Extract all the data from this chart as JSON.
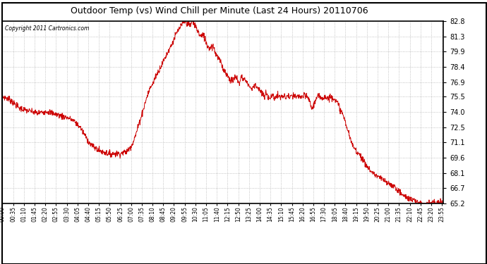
{
  "title": "Outdoor Temp (vs) Wind Chill per Minute (Last 24 Hours) 20110706",
  "copyright": "Copyright 2011 Cartronics.com",
  "background_color": "#ffffff",
  "plot_bg_color": "#ffffff",
  "line_color": "#cc0000",
  "grid_color": "#aaaaaa",
  "ylim": [
    65.2,
    82.8
  ],
  "yticks": [
    82.8,
    81.3,
    79.9,
    78.4,
    76.9,
    75.5,
    74.0,
    72.5,
    71.1,
    69.6,
    68.1,
    66.7,
    65.2
  ],
  "xtick_labels": [
    "00:00",
    "00:35",
    "01:10",
    "01:45",
    "02:20",
    "02:55",
    "03:30",
    "04:05",
    "04:40",
    "05:15",
    "05:50",
    "06:25",
    "07:00",
    "07:35",
    "08:10",
    "08:45",
    "09:20",
    "09:55",
    "10:30",
    "11:05",
    "11:40",
    "12:15",
    "12:50",
    "13:25",
    "14:00",
    "14:35",
    "15:10",
    "15:45",
    "16:20",
    "16:55",
    "17:30",
    "18:05",
    "18:40",
    "19:15",
    "19:50",
    "20:25",
    "21:00",
    "21:35",
    "22:10",
    "22:45",
    "23:20",
    "23:55"
  ],
  "control_points": [
    [
      0,
      75.5
    ],
    [
      10,
      75.4
    ],
    [
      20,
      75.3
    ],
    [
      30,
      75.1
    ],
    [
      40,
      74.8
    ],
    [
      55,
      74.4
    ],
    [
      65,
      74.3
    ],
    [
      75,
      74.2
    ],
    [
      90,
      74.1
    ],
    [
      105,
      74.0
    ],
    [
      115,
      73.9
    ],
    [
      130,
      74.0
    ],
    [
      145,
      74.1
    ],
    [
      155,
      74.0
    ],
    [
      165,
      73.9
    ],
    [
      175,
      73.8
    ],
    [
      185,
      73.7
    ],
    [
      195,
      73.6
    ],
    [
      210,
      73.5
    ],
    [
      225,
      73.3
    ],
    [
      240,
      73.0
    ],
    [
      255,
      72.5
    ],
    [
      265,
      72.0
    ],
    [
      275,
      71.5
    ],
    [
      285,
      71.0
    ],
    [
      295,
      70.7
    ],
    [
      305,
      70.5
    ],
    [
      315,
      70.3
    ],
    [
      325,
      70.2
    ],
    [
      335,
      70.1
    ],
    [
      345,
      70.0
    ],
    [
      360,
      70.0
    ],
    [
      375,
      70.0
    ],
    [
      385,
      70.0
    ],
    [
      395,
      70.1
    ],
    [
      405,
      70.2
    ],
    [
      415,
      70.5
    ],
    [
      425,
      71.0
    ],
    [
      435,
      71.8
    ],
    [
      445,
      72.8
    ],
    [
      455,
      73.8
    ],
    [
      465,
      74.8
    ],
    [
      475,
      75.8
    ],
    [
      485,
      76.5
    ],
    [
      492,
      76.8
    ],
    [
      500,
      77.5
    ],
    [
      510,
      78.0
    ],
    [
      520,
      78.6
    ],
    [
      530,
      79.2
    ],
    [
      540,
      79.8
    ],
    [
      550,
      80.4
    ],
    [
      558,
      80.9
    ],
    [
      565,
      81.4
    ],
    [
      572,
      81.8
    ],
    [
      578,
      82.1
    ],
    [
      583,
      82.3
    ],
    [
      588,
      82.5
    ],
    [
      592,
      82.7
    ],
    [
      596,
      82.8
    ],
    [
      600,
      82.7
    ],
    [
      604,
      82.6
    ],
    [
      608,
      82.5
    ],
    [
      612,
      82.3
    ],
    [
      616,
      82.6
    ],
    [
      620,
      82.8
    ],
    [
      624,
      82.7
    ],
    [
      628,
      82.4
    ],
    [
      632,
      82.2
    ],
    [
      636,
      82.0
    ],
    [
      640,
      81.7
    ],
    [
      645,
      81.4
    ],
    [
      650,
      81.3
    ],
    [
      655,
      81.4
    ],
    [
      660,
      81.2
    ],
    [
      665,
      80.8
    ],
    [
      670,
      80.4
    ],
    [
      678,
      80.2
    ],
    [
      685,
      80.5
    ],
    [
      690,
      80.3
    ],
    [
      695,
      79.8
    ],
    [
      700,
      79.5
    ],
    [
      705,
      79.2
    ],
    [
      710,
      79.0
    ],
    [
      715,
      78.6
    ],
    [
      720,
      78.3
    ],
    [
      725,
      78.0
    ],
    [
      730,
      77.8
    ],
    [
      735,
      77.5
    ],
    [
      740,
      77.3
    ],
    [
      745,
      77.1
    ],
    [
      750,
      77.0
    ],
    [
      755,
      77.1
    ],
    [
      760,
      77.4
    ],
    [
      765,
      77.3
    ],
    [
      770,
      77.0
    ],
    [
      775,
      76.8
    ],
    [
      780,
      77.5
    ],
    [
      785,
      77.3
    ],
    [
      790,
      77.2
    ],
    [
      795,
      77.0
    ],
    [
      800,
      76.8
    ],
    [
      805,
      76.6
    ],
    [
      810,
      76.4
    ],
    [
      815,
      76.2
    ],
    [
      820,
      76.5
    ],
    [
      825,
      76.7
    ],
    [
      830,
      76.5
    ],
    [
      835,
      76.3
    ],
    [
      840,
      76.1
    ],
    [
      845,
      75.9
    ],
    [
      850,
      75.7
    ],
    [
      855,
      75.5
    ],
    [
      860,
      75.8
    ],
    [
      865,
      75.6
    ],
    [
      870,
      75.5
    ],
    [
      875,
      75.4
    ],
    [
      880,
      75.6
    ],
    [
      885,
      75.5
    ],
    [
      890,
      75.4
    ],
    [
      895,
      75.5
    ],
    [
      900,
      75.6
    ],
    [
      905,
      75.5
    ],
    [
      910,
      75.4
    ],
    [
      915,
      75.6
    ],
    [
      920,
      75.5
    ],
    [
      925,
      75.4
    ],
    [
      930,
      75.6
    ],
    [
      935,
      75.5
    ],
    [
      940,
      75.4
    ],
    [
      945,
      75.5
    ],
    [
      950,
      75.6
    ],
    [
      955,
      75.5
    ],
    [
      960,
      75.4
    ],
    [
      965,
      75.5
    ],
    [
      970,
      75.6
    ],
    [
      975,
      75.5
    ],
    [
      980,
      75.4
    ],
    [
      985,
      75.5
    ],
    [
      990,
      75.6
    ],
    [
      995,
      75.5
    ],
    [
      1000,
      75.3
    ],
    [
      1005,
      74.8
    ],
    [
      1010,
      74.4
    ],
    [
      1015,
      74.6
    ],
    [
      1020,
      75.0
    ],
    [
      1025,
      75.3
    ],
    [
      1030,
      75.5
    ],
    [
      1035,
      75.4
    ],
    [
      1040,
      75.5
    ],
    [
      1045,
      75.4
    ],
    [
      1050,
      75.5
    ],
    [
      1055,
      75.5
    ],
    [
      1060,
      75.4
    ],
    [
      1065,
      75.3
    ],
    [
      1070,
      75.5
    ],
    [
      1075,
      75.4
    ],
    [
      1080,
      75.5
    ],
    [
      1085,
      75.3
    ],
    [
      1090,
      75.0
    ],
    [
      1095,
      74.8
    ],
    [
      1100,
      74.5
    ],
    [
      1105,
      74.2
    ],
    [
      1110,
      73.8
    ],
    [
      1115,
      73.5
    ],
    [
      1120,
      73.0
    ],
    [
      1125,
      72.5
    ],
    [
      1130,
      72.0
    ],
    [
      1135,
      71.5
    ],
    [
      1140,
      71.0
    ],
    [
      1145,
      70.7
    ],
    [
      1150,
      70.5
    ],
    [
      1155,
      70.3
    ],
    [
      1160,
      70.1
    ],
    [
      1165,
      70.0
    ],
    [
      1170,
      69.8
    ],
    [
      1175,
      69.5
    ],
    [
      1180,
      69.2
    ],
    [
      1185,
      69.0
    ],
    [
      1190,
      68.8
    ],
    [
      1195,
      68.6
    ],
    [
      1200,
      68.4
    ],
    [
      1210,
      68.1
    ],
    [
      1220,
      67.9
    ],
    [
      1230,
      67.7
    ],
    [
      1240,
      67.5
    ],
    [
      1250,
      67.3
    ],
    [
      1260,
      67.1
    ],
    [
      1270,
      67.0
    ],
    [
      1280,
      66.8
    ],
    [
      1290,
      66.5
    ],
    [
      1300,
      66.2
    ],
    [
      1310,
      65.9
    ],
    [
      1320,
      65.8
    ],
    [
      1330,
      65.6
    ],
    [
      1340,
      65.5
    ],
    [
      1350,
      65.4
    ],
    [
      1360,
      65.3
    ],
    [
      1370,
      65.2
    ],
    [
      1380,
      65.2
    ],
    [
      1400,
      65.2
    ],
    [
      1420,
      65.2
    ],
    [
      1439,
      65.2
    ]
  ]
}
